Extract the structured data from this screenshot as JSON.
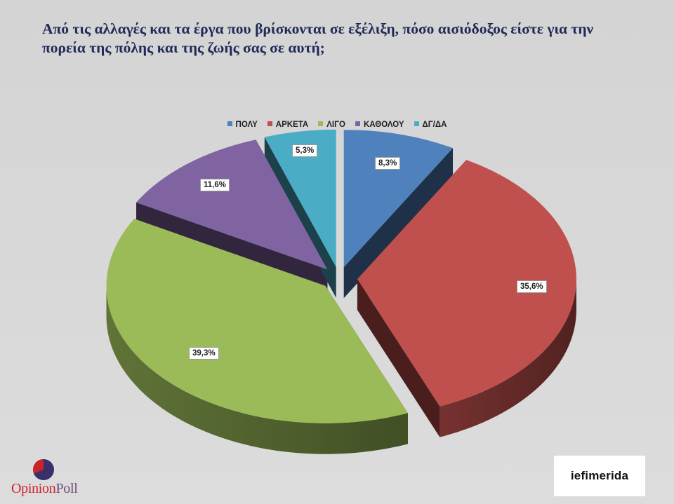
{
  "title_lines": [
    "Από τις αλλαγές και τα έργα που βρίσκονται σε εξέλιξη, πόσο αισιόδοξος είστε για την",
    "πορεία της πόλης και της ζωής σας σε αυτή;"
  ],
  "chart_data": {
    "type": "pie",
    "title": "Από τις αλλαγές και τα έργα που βρίσκονται σε εξέλιξη, πόσο αισιόδοξος είστε για την πορεία της πόλης και της ζωής σας σε αυτή;",
    "legend_position": "top",
    "categories": [
      "ΠΟΛΥ",
      "ΑΡΚΕΤΑ",
      "ΛΙΓΟ",
      "ΚΑΘΟΛΟΥ",
      "ΔΓ/ΔΑ"
    ],
    "values": [
      8.3,
      35.6,
      39.3,
      11.6,
      5.3
    ],
    "labels": [
      "8,3%",
      "35,6%",
      "39,3%",
      "11,6%",
      "5,3%"
    ],
    "colors": [
      "#4f81bd",
      "#c0504d",
      "#9bbb59",
      "#8064a2",
      "#4bacc6"
    ],
    "style": "3d-exploded"
  },
  "logos": {
    "opinion_part1": "Opinion",
    "opinion_part2": "Poll",
    "iefimerida": "iefimerida"
  }
}
